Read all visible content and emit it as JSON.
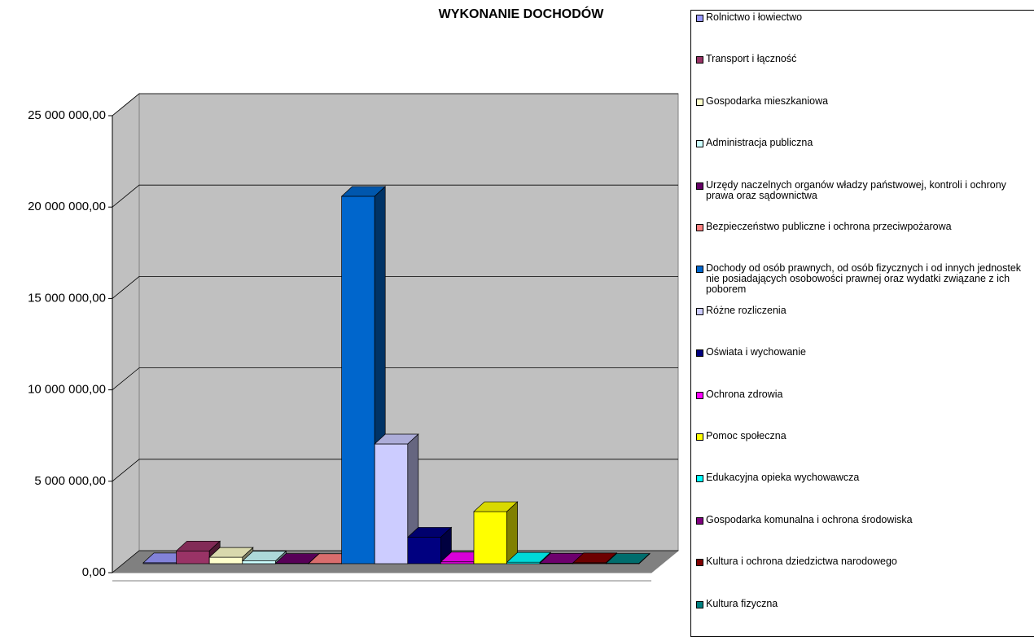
{
  "chart_data": {
    "type": "bar3d",
    "title": "WYKONANIE DOCHODÓW",
    "ylim": [
      0,
      25000000
    ],
    "yticks": [
      {
        "value": 0,
        "label": "0,00"
      },
      {
        "value": 5000000,
        "label": "5 000 000,00"
      },
      {
        "value": 10000000,
        "label": "10 000 000,00"
      },
      {
        "value": 15000000,
        "label": "15 000 000,00"
      },
      {
        "value": 20000000,
        "label": "20 000 000,00"
      },
      {
        "value": 25000000,
        "label": "25 000 000,00"
      }
    ],
    "grid": true,
    "legend": "right",
    "series": [
      {
        "name": "Rolnictwo i łowiectwo",
        "color": "#9999ff",
        "values": [
          50000
        ]
      },
      {
        "name": "Transport i łączność",
        "color": "#993366",
        "values": [
          700000
        ]
      },
      {
        "name": "Gospodarka mieszkaniowa",
        "color": "#ffffcc",
        "values": [
          350000
        ]
      },
      {
        "name": "Administracja publiczna",
        "color": "#ccffff",
        "values": [
          150000
        ]
      },
      {
        "name": "Urzędy naczelnych organów władzy państwowej, kontroli i ochrony prawa oraz sądownictwa",
        "color": "#660066",
        "values": [
          20000
        ]
      },
      {
        "name": "Bezpieczeństwo publiczne i ochrona przeciwpożarowa",
        "color": "#ff8080",
        "values": [
          10000
        ]
      },
      {
        "name": "Dochody od osób prawnych, od osób fizycznych i od innych jednostek nie posiadających osobowości prawnej oraz wydatki związane z ich poborem",
        "color": "#0066cc",
        "values": [
          20100000
        ]
      },
      {
        "name": "Różne rozliczenia",
        "color": "#ccccff",
        "values": [
          6550000
        ]
      },
      {
        "name": "Oświata i wychowanie",
        "color": "#000080",
        "values": [
          1450000
        ]
      },
      {
        "name": "Ochrona zdrowia",
        "color": "#ff00ff",
        "values": [
          100000
        ]
      },
      {
        "name": "Pomoc społeczna",
        "color": "#ffff00",
        "values": [
          2850000
        ]
      },
      {
        "name": "Edukacyjna opieka wychowawcza",
        "color": "#00ffff",
        "values": [
          80000
        ]
      },
      {
        "name": "Gospodarka komunalna i ochrona środowiska",
        "color": "#800080",
        "values": [
          30000
        ]
      },
      {
        "name": "Kultura i ochrona dziedzictwa narodowego",
        "color": "#800000",
        "values": [
          50000
        ]
      },
      {
        "name": "Kultura fizyczna",
        "color": "#008080",
        "values": [
          20000
        ]
      }
    ]
  }
}
